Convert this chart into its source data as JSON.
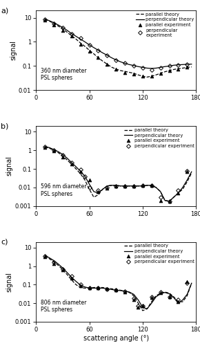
{
  "panels": [
    {
      "label": "a)",
      "text": "360 nm diameter\nPSL spheres",
      "ylim": [
        0.01,
        20
      ],
      "yticks": [
        0.01,
        0.1,
        1,
        10
      ],
      "parallel_theory_x": [
        10,
        15,
        20,
        25,
        30,
        35,
        40,
        45,
        50,
        55,
        60,
        65,
        70,
        75,
        80,
        85,
        90,
        95,
        100,
        105,
        110,
        115,
        120,
        125,
        130,
        135,
        140,
        145,
        150,
        155,
        160,
        165,
        170,
        175
      ],
      "parallel_theory_y": [
        8.5,
        7.2,
        5.8,
        4.5,
        3.4,
        2.5,
        1.8,
        1.3,
        0.9,
        0.65,
        0.45,
        0.32,
        0.22,
        0.16,
        0.12,
        0.09,
        0.075,
        0.065,
        0.06,
        0.055,
        0.05,
        0.043,
        0.038,
        0.035,
        0.038,
        0.043,
        0.05,
        0.058,
        0.065,
        0.072,
        0.078,
        0.082,
        0.088,
        0.092
      ],
      "perp_theory_x": [
        10,
        15,
        20,
        25,
        30,
        35,
        40,
        45,
        50,
        55,
        60,
        65,
        70,
        75,
        80,
        85,
        90,
        95,
        100,
        105,
        110,
        115,
        120,
        125,
        130,
        135,
        140,
        145,
        150,
        155,
        160,
        165,
        170,
        175
      ],
      "perp_theory_y": [
        8.8,
        7.5,
        6.2,
        5.0,
        3.9,
        3.0,
        2.2,
        1.7,
        1.3,
        1.0,
        0.75,
        0.58,
        0.45,
        0.35,
        0.28,
        0.22,
        0.18,
        0.15,
        0.13,
        0.115,
        0.105,
        0.095,
        0.088,
        0.082,
        0.08,
        0.082,
        0.088,
        0.095,
        0.1,
        0.108,
        0.112,
        0.115,
        0.118,
        0.12
      ],
      "parallel_exp_x": [
        10,
        20,
        30,
        40,
        50,
        60,
        70,
        80,
        90,
        100,
        110,
        120,
        130,
        140,
        150,
        160,
        170
      ],
      "parallel_exp_y": [
        8.0,
        5.0,
        3.0,
        1.7,
        0.8,
        0.42,
        0.22,
        0.12,
        0.075,
        0.055,
        0.048,
        0.038,
        0.038,
        0.05,
        0.065,
        0.075,
        0.09
      ],
      "perp_exp_x": [
        10,
        20,
        30,
        40,
        50,
        60,
        70,
        80,
        90,
        100,
        110,
        120,
        130,
        140,
        150,
        160,
        170
      ],
      "perp_exp_y": [
        8.5,
        5.8,
        3.8,
        2.2,
        1.4,
        0.75,
        0.45,
        0.28,
        0.18,
        0.13,
        0.1,
        0.082,
        0.07,
        0.085,
        0.1,
        0.108,
        0.115
      ],
      "legend_perp_exp": "perpendicular\nexperiment"
    },
    {
      "label": "b)",
      "text": "596 nm diameter\nPSL spheres",
      "ylim": [
        0.001,
        20
      ],
      "yticks": [
        0.001,
        0.01,
        0.1,
        1,
        10
      ],
      "parallel_theory_x": [
        10,
        15,
        20,
        25,
        30,
        35,
        40,
        45,
        50,
        55,
        60,
        65,
        70,
        75,
        80,
        85,
        90,
        95,
        100,
        105,
        110,
        115,
        120,
        125,
        130,
        135,
        140,
        145,
        150,
        155,
        160,
        165,
        170,
        175
      ],
      "parallel_theory_y": [
        1.5,
        1.3,
        1.0,
        0.75,
        0.5,
        0.3,
        0.18,
        0.1,
        0.055,
        0.025,
        0.008,
        0.003,
        0.004,
        0.008,
        0.012,
        0.013,
        0.013,
        0.012,
        0.012,
        0.012,
        0.012,
        0.012,
        0.012,
        0.013,
        0.013,
        0.01,
        0.006,
        0.002,
        0.0018,
        0.003,
        0.005,
        0.008,
        0.02,
        0.06
      ],
      "perp_theory_x": [
        10,
        15,
        20,
        25,
        30,
        35,
        40,
        45,
        50,
        55,
        60,
        65,
        70,
        75,
        80,
        85,
        90,
        95,
        100,
        105,
        110,
        115,
        120,
        125,
        130,
        135,
        140,
        145,
        150,
        155,
        160,
        165,
        170,
        175
      ],
      "perp_theory_y": [
        1.6,
        1.4,
        1.1,
        0.85,
        0.6,
        0.38,
        0.22,
        0.13,
        0.075,
        0.04,
        0.015,
        0.006,
        0.005,
        0.008,
        0.012,
        0.013,
        0.013,
        0.012,
        0.012,
        0.012,
        0.012,
        0.012,
        0.012,
        0.013,
        0.013,
        0.01,
        0.006,
        0.002,
        0.0018,
        0.003,
        0.005,
        0.01,
        0.025,
        0.07
      ],
      "parallel_exp_x": [
        10,
        20,
        30,
        40,
        50,
        60,
        70,
        80,
        90,
        100,
        110,
        120,
        130,
        140,
        150,
        160,
        170
      ],
      "parallel_exp_y": [
        1.4,
        0.9,
        0.45,
        0.18,
        0.07,
        0.025,
        0.006,
        0.009,
        0.012,
        0.012,
        0.012,
        0.013,
        0.013,
        0.002,
        0.0018,
        0.005,
        0.07
      ],
      "perp_exp_x": [
        10,
        20,
        30,
        40,
        50,
        55,
        60,
        70,
        80,
        90,
        100,
        110,
        120,
        130,
        140,
        150,
        160,
        170
      ],
      "perp_exp_y": [
        1.5,
        1.0,
        0.55,
        0.22,
        0.09,
        0.04,
        0.01,
        0.007,
        0.01,
        0.012,
        0.012,
        0.012,
        0.013,
        0.013,
        0.003,
        0.0018,
        0.007,
        0.075
      ],
      "legend_perp_exp": "perpendicular experiment"
    },
    {
      "label": "c)",
      "text": "806 nm diameter\nPSL spheres",
      "ylim": [
        0.001,
        20
      ],
      "yticks": [
        0.001,
        0.01,
        0.1,
        1,
        10
      ],
      "parallel_theory_x": [
        10,
        15,
        20,
        25,
        30,
        35,
        40,
        45,
        50,
        55,
        60,
        65,
        70,
        75,
        80,
        85,
        90,
        95,
        100,
        105,
        110,
        115,
        120,
        125,
        130,
        135,
        140,
        145,
        150,
        155,
        160,
        165,
        170,
        175
      ],
      "parallel_theory_y": [
        3.5,
        2.5,
        1.7,
        1.1,
        0.65,
        0.35,
        0.18,
        0.1,
        0.07,
        0.065,
        0.065,
        0.07,
        0.07,
        0.07,
        0.065,
        0.06,
        0.055,
        0.05,
        0.045,
        0.038,
        0.025,
        0.01,
        0.004,
        0.005,
        0.012,
        0.025,
        0.035,
        0.04,
        0.035,
        0.022,
        0.012,
        0.012,
        0.025,
        0.12
      ],
      "perp_theory_x": [
        10,
        15,
        20,
        25,
        30,
        35,
        40,
        45,
        50,
        55,
        60,
        65,
        70,
        75,
        80,
        85,
        90,
        95,
        100,
        105,
        110,
        115,
        120,
        125,
        130,
        135,
        140,
        145,
        150,
        155,
        160,
        165,
        170,
        175
      ],
      "perp_theory_y": [
        3.8,
        2.8,
        2.0,
        1.3,
        0.8,
        0.45,
        0.25,
        0.15,
        0.095,
        0.075,
        0.065,
        0.065,
        0.065,
        0.065,
        0.06,
        0.055,
        0.05,
        0.048,
        0.045,
        0.04,
        0.03,
        0.015,
        0.006,
        0.005,
        0.01,
        0.022,
        0.032,
        0.038,
        0.032,
        0.02,
        0.01,
        0.015,
        0.03,
        0.12
      ],
      "parallel_exp_x": [
        10,
        20,
        30,
        40,
        50,
        60,
        70,
        80,
        90,
        100,
        110,
        115,
        120,
        130,
        140,
        150,
        160,
        170
      ],
      "parallel_exp_y": [
        3.3,
        1.4,
        0.6,
        0.22,
        0.085,
        0.068,
        0.068,
        0.06,
        0.05,
        0.04,
        0.015,
        0.006,
        0.007,
        0.02,
        0.038,
        0.022,
        0.012,
        0.15
      ],
      "perp_exp_x": [
        10,
        20,
        30,
        40,
        50,
        60,
        70,
        80,
        90,
        100,
        110,
        115,
        120,
        130,
        140,
        150,
        160,
        170
      ],
      "perp_exp_y": [
        3.6,
        1.6,
        0.7,
        0.28,
        0.1,
        0.068,
        0.068,
        0.058,
        0.05,
        0.042,
        0.018,
        0.007,
        0.007,
        0.022,
        0.04,
        0.022,
        0.015,
        0.12
      ],
      "legend_perp_exp": "perpendicular experiment"
    }
  ],
  "xlabel": "scattering angle (°)",
  "ylabel": "signal",
  "xticks": [
    0,
    60,
    120,
    180
  ],
  "xlim": [
    0,
    180
  ],
  "bg_color": "#ffffff"
}
